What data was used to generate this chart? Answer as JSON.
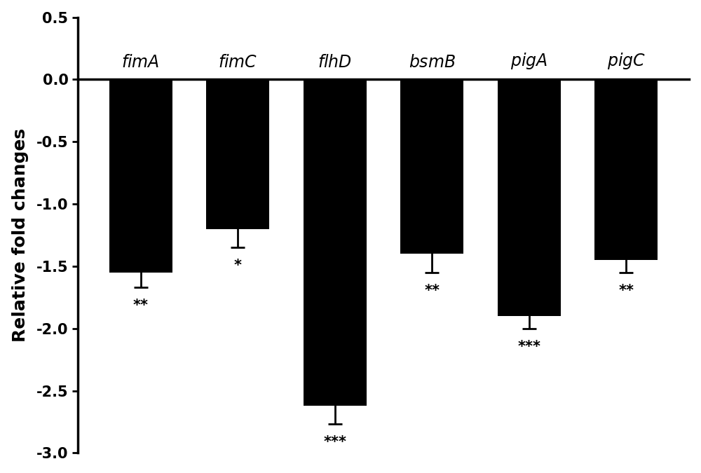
{
  "categories": [
    "fimA",
    "fimC",
    "flhD",
    "bsmB",
    "pigA",
    "pigC"
  ],
  "labels_italic": [
    "fimA",
    "fimC",
    "flhD",
    "bsmB",
    "pigA",
    "pigC"
  ],
  "values": [
    -1.55,
    -1.2,
    -2.62,
    -1.4,
    -1.9,
    -1.45
  ],
  "errors": [
    0.12,
    0.15,
    0.15,
    0.15,
    0.1,
    0.1
  ],
  "significance": [
    "**",
    "*",
    "***",
    "**",
    "***",
    "**"
  ],
  "bar_color": "#000000",
  "ylabel": "Relative fold changes",
  "ylim": [
    -3.0,
    0.5
  ],
  "yticks": [
    0.5,
    0.0,
    -0.5,
    -1.0,
    -1.5,
    -2.0,
    -2.5,
    -3.0
  ],
  "bar_width": 0.65,
  "background_color": "#ffffff",
  "tick_fontsize": 15,
  "sig_fontsize": 15,
  "bar_label_fontsize": 17,
  "ylabel_fontsize": 18
}
